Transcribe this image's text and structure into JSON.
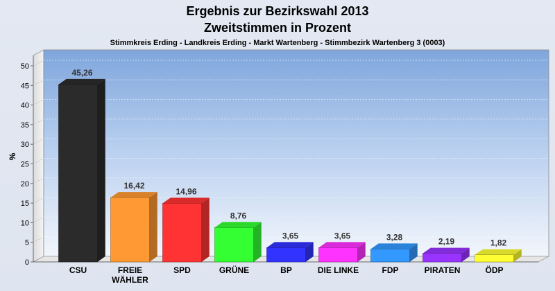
{
  "chart_data": {
    "type": "bar",
    "title": "Ergebnis zur Bezirkswahl 2013",
    "subtitle": "Zweitstimmen in Prozent",
    "caption": "Stimmkreis Erding - Landkreis Erding - Markt Wartenberg - Stimmbezirk Wartenberg 3 (0003)",
    "xlabel": "",
    "ylabel": "%",
    "ylim": [
      0,
      50
    ],
    "yticks": [
      "0",
      "5",
      "10",
      "15",
      "20",
      "25",
      "30",
      "35",
      "40",
      "45",
      "50"
    ],
    "grid": true,
    "categories": [
      [
        "CSU"
      ],
      [
        "FREIE",
        "WÄHLER"
      ],
      [
        "SPD"
      ],
      [
        "GRÜNE"
      ],
      [
        "BP"
      ],
      [
        "DIE LINKE"
      ],
      [
        "FDP"
      ],
      [
        "PIRATEN"
      ],
      [
        "ÖDP"
      ]
    ],
    "values": [
      45.26,
      16.42,
      14.96,
      8.76,
      3.65,
      3.65,
      3.28,
      2.19,
      1.82
    ],
    "value_labels": [
      "45,26",
      "16,42",
      "14,96",
      "8,76",
      "3,65",
      "3,65",
      "3,28",
      "2,19",
      "1,82"
    ],
    "colors": [
      "#2b2b2b",
      "#ff9933",
      "#ff3333",
      "#33ff33",
      "#3333ff",
      "#ff33ff",
      "#3399ff",
      "#9933ff",
      "#ffff33"
    ]
  }
}
